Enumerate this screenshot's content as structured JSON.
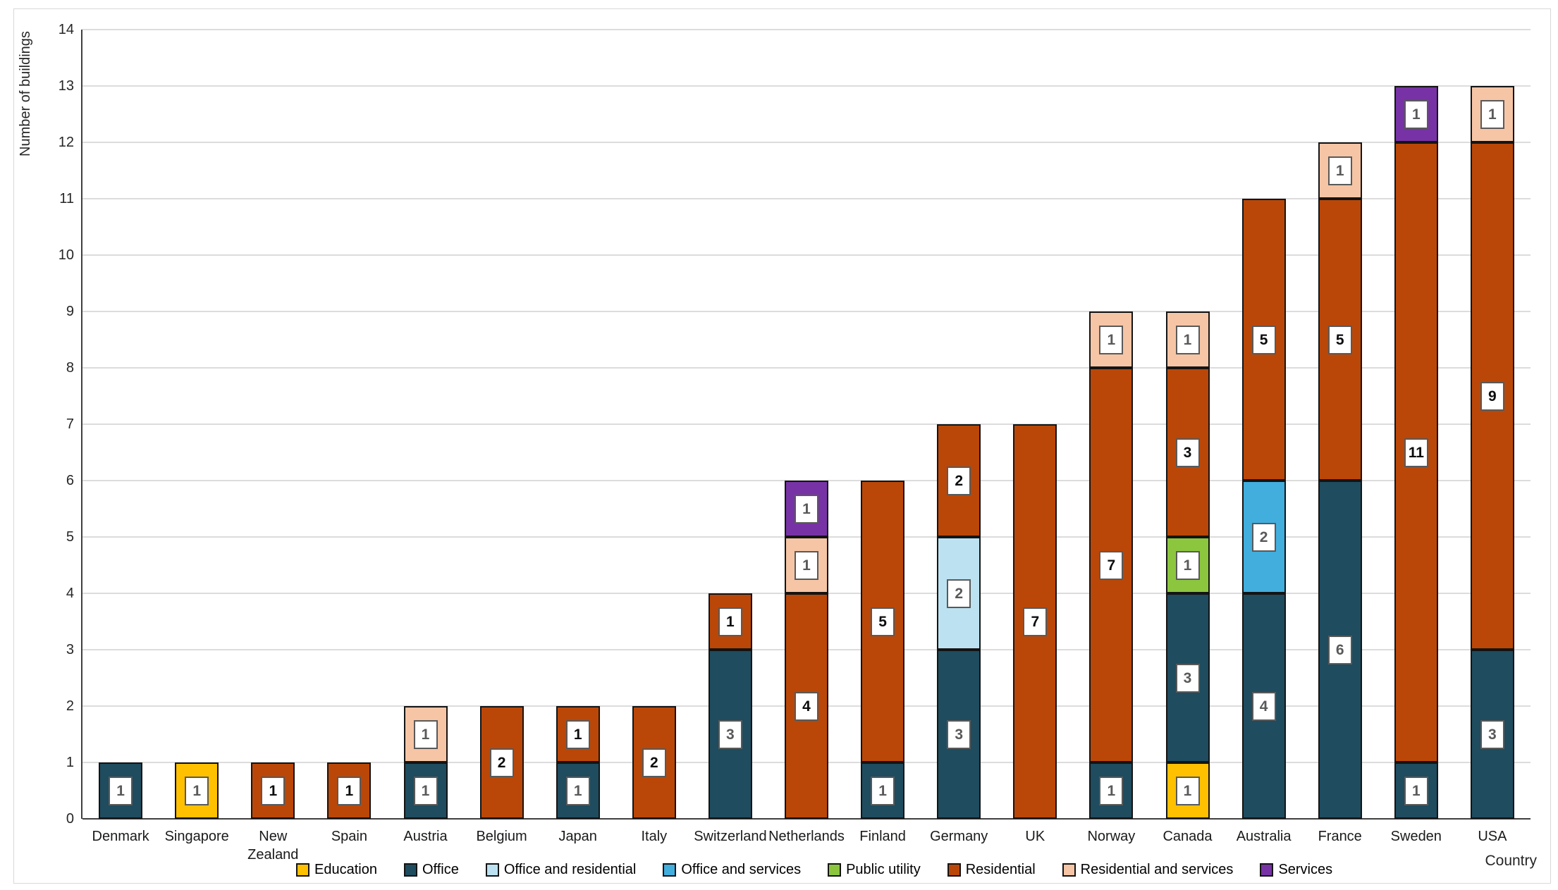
{
  "chart_data": {
    "type": "bar",
    "stacked": true,
    "title": "",
    "xlabel": "Country",
    "ylabel": "Number of buildings",
    "ylim": [
      0,
      14
    ],
    "yticks": [
      0,
      1,
      2,
      3,
      4,
      5,
      6,
      7,
      8,
      9,
      10,
      11,
      12,
      13,
      14
    ],
    "grid": true,
    "legend_position": "bottom",
    "segment_labels_visible": true,
    "categories": [
      "Denmark",
      "Singapore",
      "New Zealand",
      "Spain",
      "Austria",
      "Belgium",
      "Japan",
      "Italy",
      "Switzerland",
      "Netherlands",
      "Finland",
      "Germany",
      "UK",
      "Norway",
      "Canada",
      "Australia",
      "France",
      "Sweden",
      "USA"
    ],
    "series": [
      {
        "name": "Education",
        "color": "#FFC000",
        "values": [
          0,
          1,
          0,
          0,
          0,
          0,
          0,
          0,
          0,
          0,
          0,
          0,
          0,
          0,
          1,
          0,
          0,
          0,
          0
        ]
      },
      {
        "name": "Office",
        "color": "#1F4C5F",
        "values": [
          1,
          0,
          0,
          0,
          1,
          0,
          1,
          0,
          3,
          0,
          1,
          3,
          0,
          1,
          3,
          4,
          6,
          1,
          3
        ]
      },
      {
        "name": "Office and residential",
        "color": "#BCE2F1",
        "values": [
          0,
          0,
          0,
          0,
          0,
          0,
          0,
          0,
          0,
          0,
          0,
          2,
          0,
          0,
          0,
          0,
          0,
          0,
          0
        ]
      },
      {
        "name": "Office and services",
        "color": "#41AEDE",
        "values": [
          0,
          0,
          0,
          0,
          0,
          0,
          0,
          0,
          0,
          0,
          0,
          0,
          0,
          0,
          0,
          2,
          0,
          0,
          0
        ]
      },
      {
        "name": "Public utility",
        "color": "#8CC63F",
        "values": [
          0,
          0,
          0,
          0,
          0,
          0,
          0,
          0,
          0,
          0,
          0,
          0,
          0,
          0,
          1,
          0,
          0,
          0,
          0
        ]
      },
      {
        "name": "Residential",
        "color": "#BA4708",
        "values": [
          0,
          0,
          1,
          1,
          0,
          2,
          1,
          2,
          1,
          4,
          5,
          2,
          7,
          7,
          3,
          5,
          5,
          11,
          9
        ]
      },
      {
        "name": "Residential and services",
        "color": "#F6C5A5",
        "values": [
          0,
          0,
          0,
          0,
          1,
          0,
          0,
          0,
          0,
          1,
          0,
          0,
          0,
          1,
          1,
          0,
          1,
          0,
          1
        ]
      },
      {
        "name": "Services",
        "color": "#7733A6",
        "values": [
          0,
          0,
          0,
          0,
          0,
          0,
          0,
          0,
          0,
          1,
          0,
          0,
          0,
          0,
          0,
          0,
          0,
          1,
          0
        ]
      }
    ],
    "totals": [
      1,
      1,
      1,
      1,
      2,
      2,
      2,
      2,
      4,
      6,
      6,
      7,
      7,
      9,
      9,
      11,
      12,
      13,
      13
    ],
    "segment_label_colors": {
      "Residential": "#0d0d0d",
      "default": "#595959"
    },
    "gridline_color": "#dcdcdc",
    "axis_line_color": "#3f3f3f",
    "segment_border_color": "#141414"
  }
}
